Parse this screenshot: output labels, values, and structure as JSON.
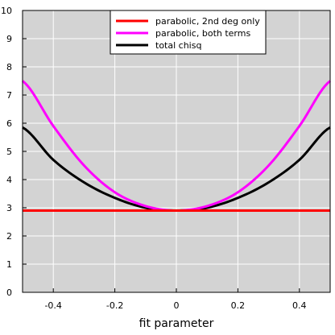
{
  "chart_data": {
    "type": "line",
    "xlabel": "fit parameter",
    "ylabel": "",
    "xlim": [
      -0.5,
      0.5
    ],
    "ylim": [
      0,
      10
    ],
    "grid": true,
    "plot_background": "#d3d3d3",
    "grid_color": "#ffffff",
    "legend_position": "top-center",
    "x_ticks": [
      -0.4,
      -0.2,
      0,
      0.2,
      0.4
    ],
    "x_tick_labels": [
      "-0.4",
      "-0.2",
      "0",
      "0.2",
      "0.4"
    ],
    "y_ticks": [
      0,
      1,
      2,
      3,
      4,
      5,
      6,
      7,
      8,
      9,
      10
    ],
    "y_tick_labels": [
      "0",
      "1",
      "2",
      "3",
      "4",
      "5",
      "6",
      "7",
      "8",
      "9",
      "10"
    ],
    "series": [
      {
        "name": "parabolic, 2nd deg only",
        "color": "#ff0000",
        "x": [
          -0.5,
          -0.4,
          -0.3,
          -0.2,
          -0.1,
          0,
          0.1,
          0.2,
          0.3,
          0.4,
          0.5
        ],
        "values": [
          2.9,
          2.9,
          2.9,
          2.9,
          2.9,
          2.9,
          2.9,
          2.9,
          2.9,
          2.9,
          2.9
        ]
      },
      {
        "name": "parabolic, both terms",
        "color": "#ff00ff",
        "x": [
          -0.5,
          -0.4,
          -0.3,
          -0.2,
          -0.1,
          0,
          0.1,
          0.2,
          0.3,
          0.4,
          0.5
        ],
        "values": [
          7.5,
          5.9,
          4.5,
          3.55,
          3.06,
          2.9,
          3.06,
          3.55,
          4.5,
          5.9,
          7.5
        ]
      },
      {
        "name": "total chisq",
        "color": "#000000",
        "x": [
          -0.5,
          -0.4,
          -0.3,
          -0.2,
          -0.1,
          0,
          0.1,
          0.2,
          0.3,
          0.4,
          0.5
        ],
        "values": [
          5.85,
          4.7,
          3.9,
          3.35,
          3.0,
          2.9,
          3.0,
          3.35,
          3.9,
          4.7,
          5.85
        ]
      }
    ]
  }
}
